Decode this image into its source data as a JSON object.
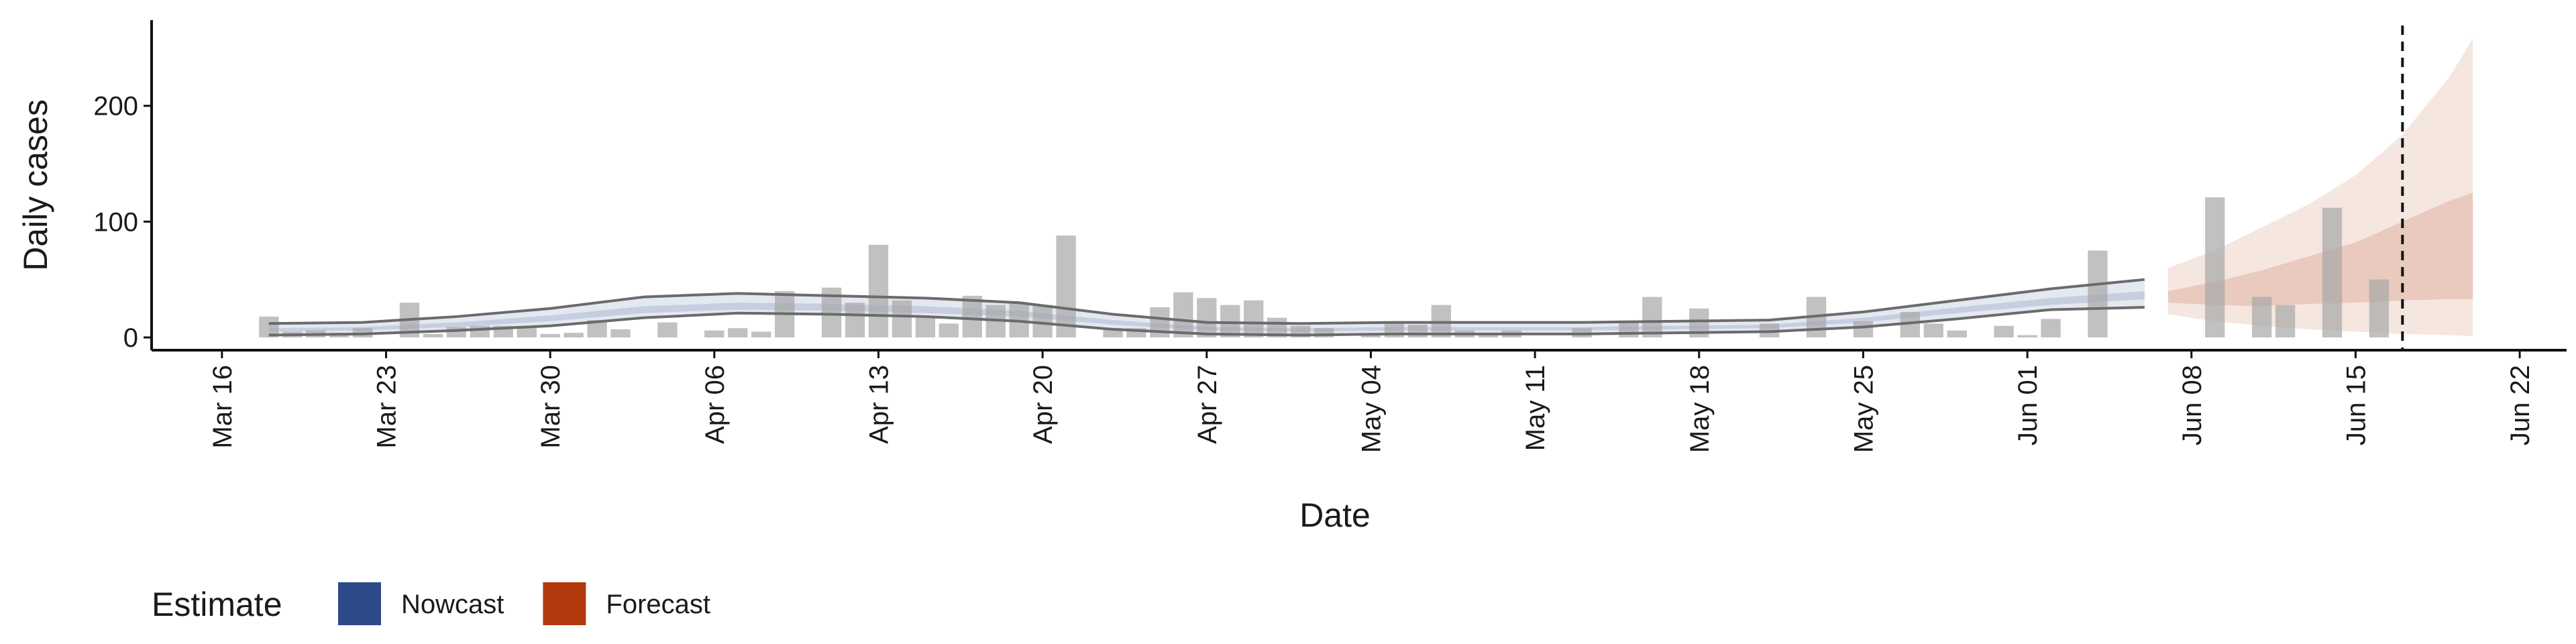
{
  "chart_data": {
    "type": "bar",
    "xlabel": "Date",
    "ylabel": "Daily cases",
    "legend_title": "Estimate",
    "legend_position": "bottom",
    "xlim": [
      "Mar 13",
      "Jun 24"
    ],
    "xticks": [
      "Mar 16",
      "Mar 23",
      "Mar 30",
      "Apr 06",
      "Apr 13",
      "Apr 20",
      "Apr 27",
      "May 04",
      "May 11",
      "May 18",
      "May 25",
      "Jun 01",
      "Jun 08",
      "Jun 15",
      "Jun 22"
    ],
    "ylim": [
      -11,
      274
    ],
    "yticks": [
      0,
      100,
      200
    ],
    "vline": "Jun 17",
    "bars": {
      "color": "#a6a6a6",
      "x": [
        "Mar 18",
        "Mar 19",
        "Mar 20",
        "Mar 21",
        "Mar 22",
        "Mar 24",
        "Mar 25",
        "Mar 26",
        "Mar 27",
        "Mar 28",
        "Mar 29",
        "Mar 30",
        "Mar 31",
        "Apr 01",
        "Apr 02",
        "Apr 04",
        "Apr 06",
        "Apr 07",
        "Apr 08",
        "Apr 09",
        "Apr 11",
        "Apr 12",
        "Apr 13",
        "Apr 14",
        "Apr 15",
        "Apr 16",
        "Apr 17",
        "Apr 18",
        "Apr 19",
        "Apr 20",
        "Apr 21",
        "Apr 23",
        "Apr 24",
        "Apr 25",
        "Apr 26",
        "Apr 27",
        "Apr 28",
        "Apr 29",
        "Apr 30",
        "May 01",
        "May 02",
        "May 04",
        "May 05",
        "May 06",
        "May 07",
        "May 08",
        "May 09",
        "May 10",
        "May 13",
        "May 15",
        "May 16",
        "May 18",
        "May 21",
        "May 23",
        "May 25",
        "May 27",
        "May 28",
        "May 29",
        "May 31",
        "Jun 01",
        "Jun 02",
        "Jun 04",
        "Jun 09",
        "Jun 11",
        "Jun 12",
        "Jun 14",
        "Jun 16"
      ],
      "values": [
        18,
        5,
        6,
        4,
        8,
        30,
        3,
        9,
        10,
        10,
        10,
        3,
        4,
        15,
        7,
        13,
        6,
        8,
        5,
        40,
        43,
        30,
        80,
        32,
        18,
        12,
        36,
        28,
        30,
        28,
        88,
        8,
        8,
        26,
        39,
        34,
        28,
        32,
        17,
        10,
        8,
        3,
        14,
        11,
        28,
        6,
        3,
        6,
        8,
        14,
        35,
        25,
        12,
        35,
        14,
        22,
        12,
        6,
        10,
        2,
        16,
        75,
        121,
        35,
        28,
        112,
        50
      ]
    },
    "series": [
      {
        "name": "Nowcast",
        "color": "#2f4a8a",
        "outline_color": "#6b6b6b",
        "x": [
          "Mar 18",
          "Mar 22",
          "Mar 26",
          "Mar 30",
          "Apr 03",
          "Apr 07",
          "Apr 11",
          "Apr 15",
          "Apr 19",
          "Apr 23",
          "Apr 27",
          "May 01",
          "May 05",
          "May 09",
          "May 13",
          "May 17",
          "May 21",
          "May 25",
          "May 29",
          "Jun 02",
          "Jun 06"
        ],
        "upper_90": [
          12,
          13,
          18,
          25,
          35,
          38,
          36,
          34,
          30,
          20,
          13,
          12,
          13,
          13,
          13,
          14,
          15,
          22,
          32,
          42,
          50
        ],
        "upper_50": [
          8,
          9,
          13,
          19,
          27,
          30,
          29,
          27,
          23,
          15,
          9,
          8,
          9,
          9,
          9,
          10,
          11,
          17,
          26,
          34,
          40
        ],
        "lower_50": [
          5,
          6,
          9,
          14,
          21,
          24,
          23,
          21,
          18,
          11,
          6,
          5,
          6,
          6,
          6,
          7,
          8,
          13,
          21,
          28,
          33
        ],
        "lower_90": [
          2,
          3,
          6,
          10,
          17,
          21,
          20,
          18,
          14,
          7,
          3,
          2,
          3,
          3,
          3,
          4,
          5,
          9,
          16,
          24,
          26
        ]
      },
      {
        "name": "Forecast",
        "color": "#b33a0c",
        "x": [
          "Jun 07",
          "Jun 09",
          "Jun 11",
          "Jun 13",
          "Jun 15",
          "Jun 17",
          "Jun 19",
          "Jun 20"
        ],
        "upper_90": [
          60,
          75,
          95,
          115,
          140,
          175,
          225,
          258
        ],
        "upper_50": [
          40,
          48,
          58,
          70,
          82,
          100,
          118,
          125
        ],
        "lower_50": [
          30,
          28,
          27,
          29,
          30,
          32,
          33,
          33
        ],
        "lower_90": [
          20,
          14,
          10,
          7,
          5,
          3,
          2,
          1
        ]
      }
    ]
  }
}
